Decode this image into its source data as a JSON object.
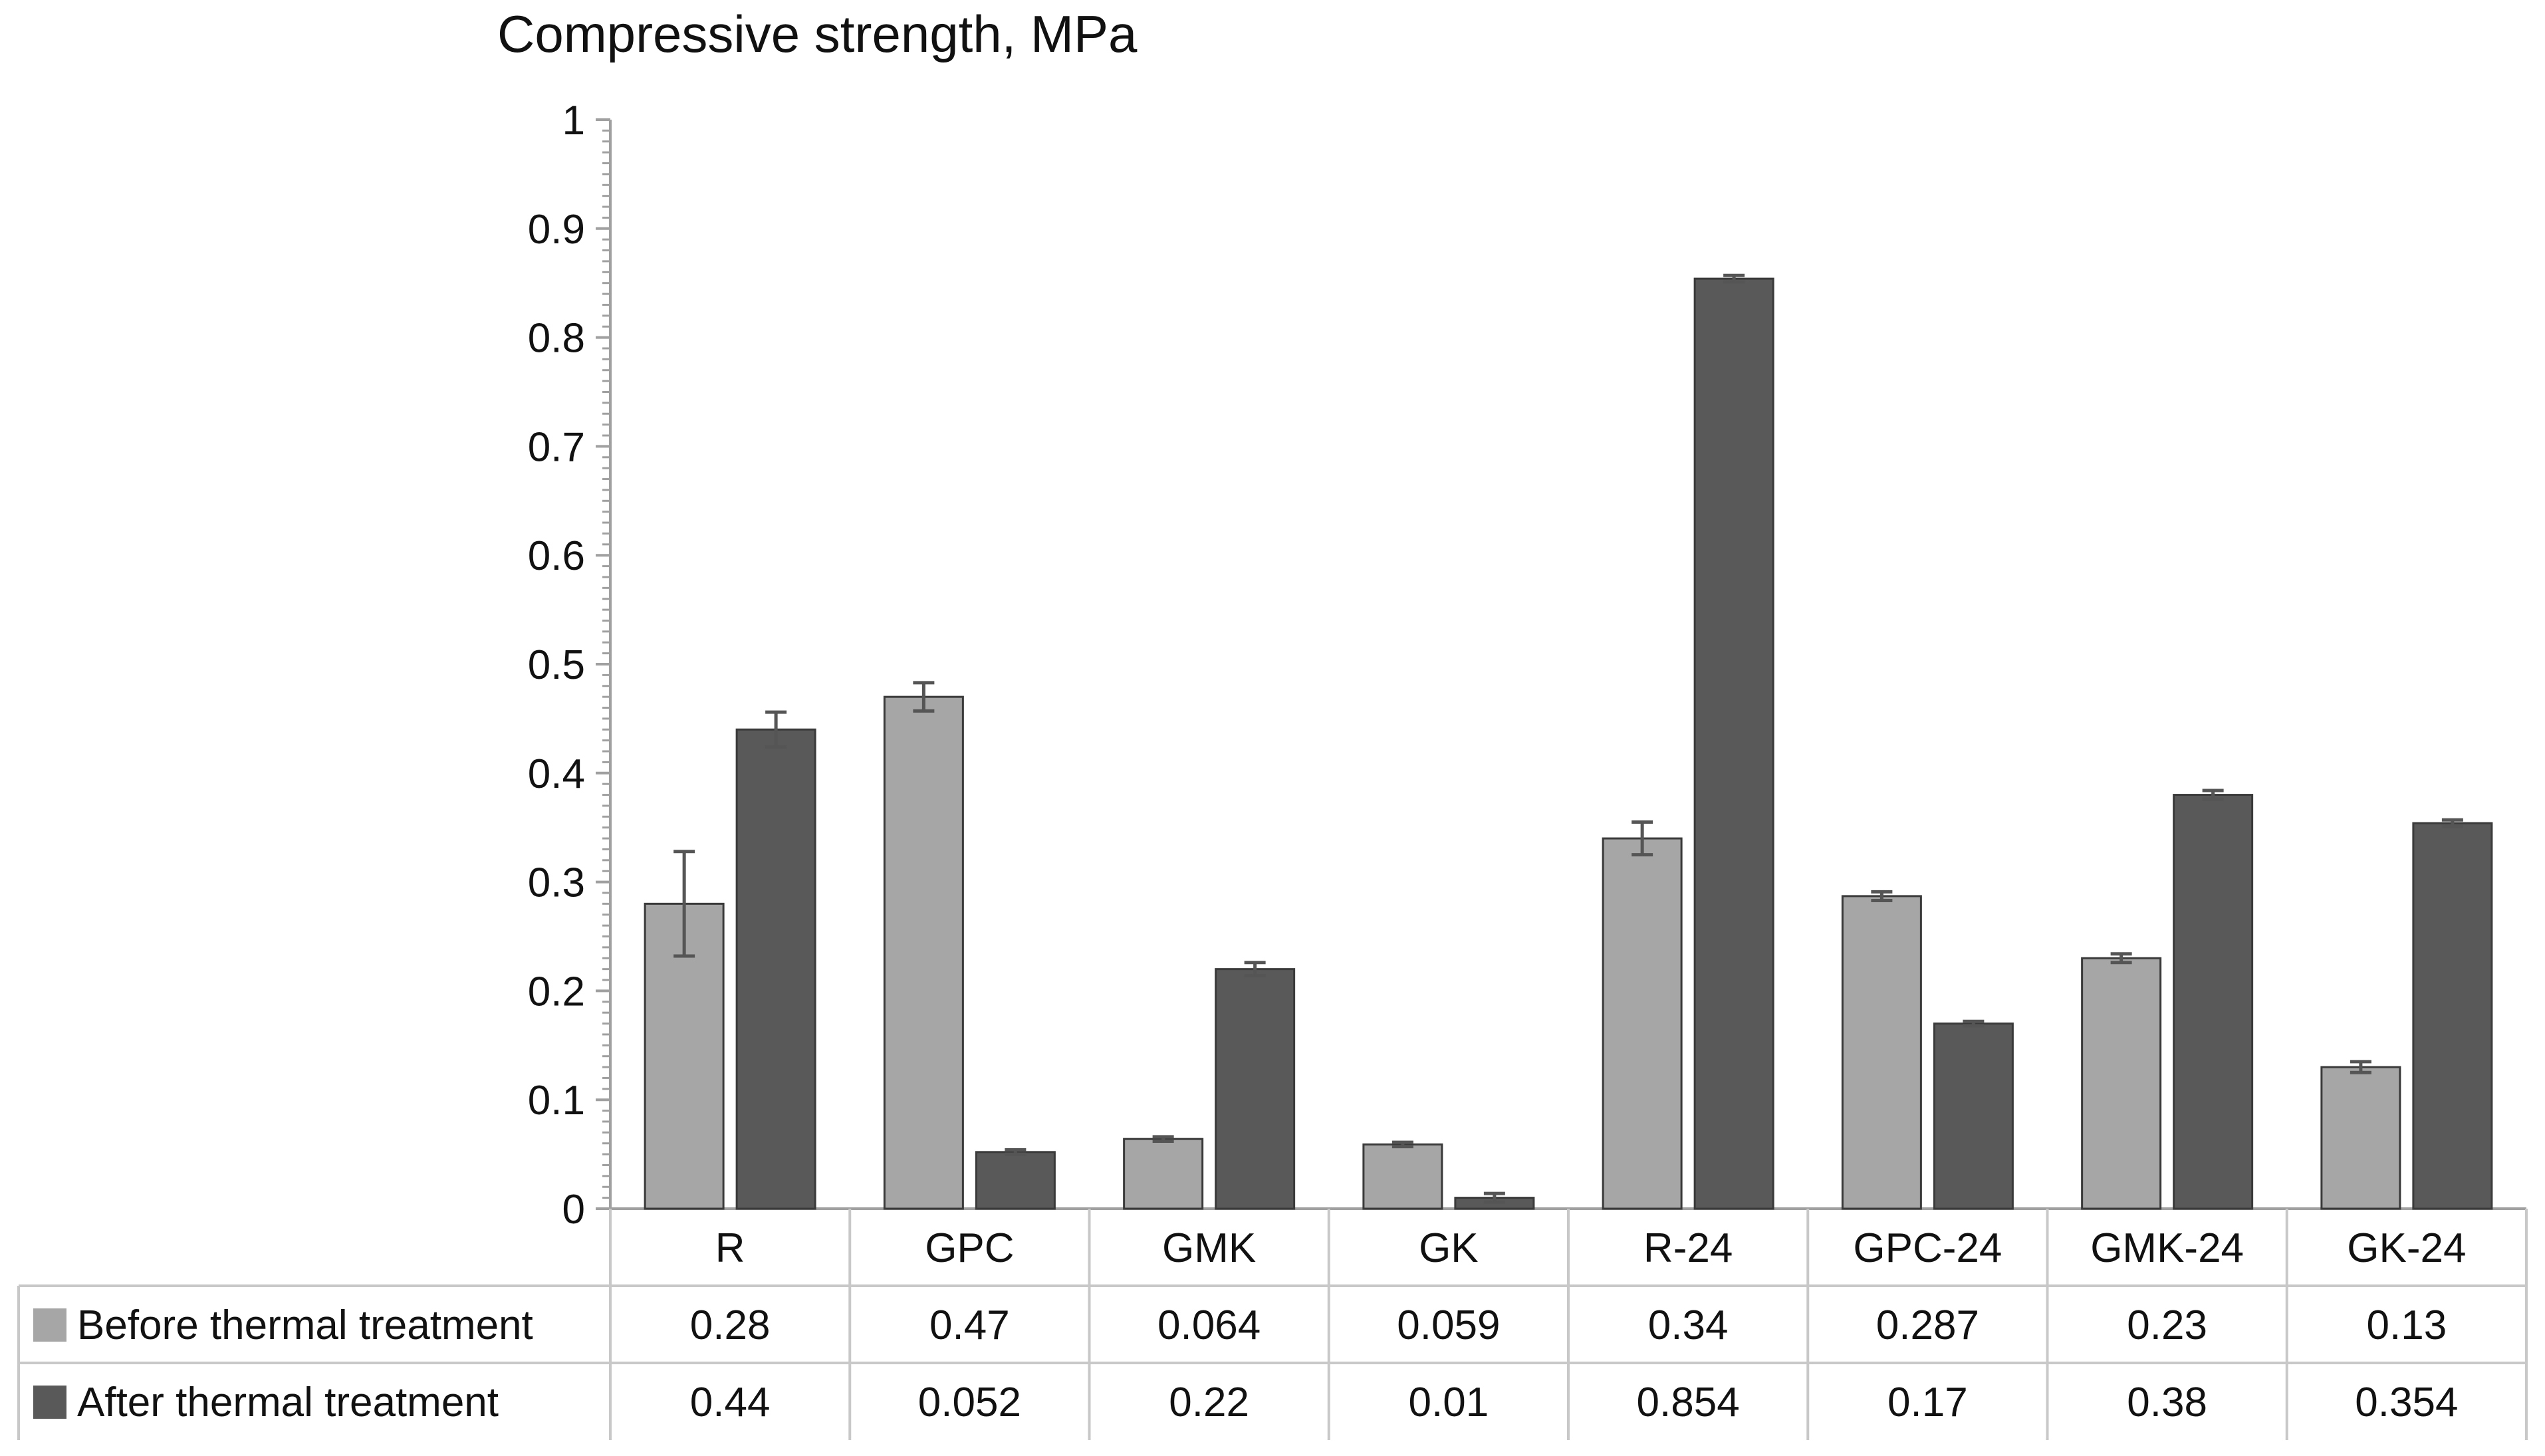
{
  "chart_data": {
    "type": "bar",
    "title": "Compressive  strength,  MPa",
    "xlabel": "",
    "ylabel": "",
    "ylim": [
      0,
      1
    ],
    "y_ticks": [
      "0",
      "0.1",
      "0.2",
      "0.3",
      "0.4",
      "0.5",
      "0.6",
      "0.7",
      "0.8",
      "0.9",
      "1"
    ],
    "categories": [
      "R",
      "GPC",
      "GMK",
      "GK",
      "R-24",
      "GPC-24",
      "GMK-24",
      "GK-24"
    ],
    "series": [
      {
        "name": "Before thermal treatment",
        "color": "#a6a6a6",
        "values": [
          0.28,
          0.47,
          0.064,
          0.059,
          0.34,
          0.287,
          0.23,
          0.13
        ],
        "labels": [
          "0.28",
          "0.47",
          "0.064",
          "0.059",
          "0.34",
          "0.287",
          "0.23",
          "0.13"
        ],
        "errors": [
          0.048,
          0.013,
          0.002,
          0.002,
          0.015,
          0.004,
          0.004,
          0.005
        ]
      },
      {
        "name": "After thermal treatment",
        "color": "#595959",
        "values": [
          0.44,
          0.052,
          0.22,
          0.01,
          0.854,
          0.17,
          0.38,
          0.354
        ],
        "labels": [
          "0.44",
          "0.052",
          "0.22",
          "0.01",
          "0.854",
          "0.17",
          "0.38",
          "0.354"
        ],
        "errors": [
          0.016,
          0.002,
          0.006,
          0.004,
          0.003,
          0.002,
          0.004,
          0.003
        ]
      }
    ],
    "data_table": true,
    "grid": false
  }
}
